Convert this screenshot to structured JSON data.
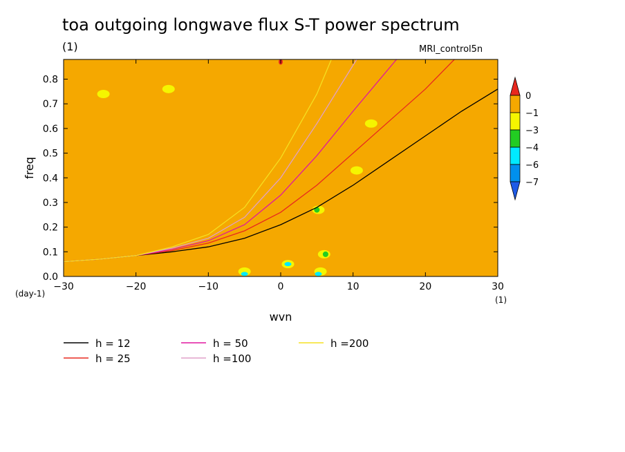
{
  "page": {
    "title": "toa outgoing longwave flux S-T power spectrum",
    "unit_label": "(1)",
    "model_label": "MRI_control5n"
  },
  "chart_data": {
    "type": "heatmap",
    "title": "toa outgoing longwave flux S-T power spectrum",
    "xlabel": "wvn",
    "ylabel": "freq",
    "x_unit": "(1)",
    "y_unit": "(day-1)",
    "xlim": [
      -30,
      30
    ],
    "ylim": [
      0.0,
      0.88
    ],
    "xticks": [
      -30,
      -20,
      -10,
      0,
      10,
      20,
      30
    ],
    "yticks": [
      0.0,
      0.1,
      0.2,
      0.3,
      0.4,
      0.5,
      0.6,
      0.7,
      0.8
    ],
    "colorbar": {
      "levels": [
        "0",
        "-1",
        "-3",
        "-4",
        "-6",
        "-7"
      ],
      "colors": [
        "#e8281e",
        "#f5a800",
        "#f5f500",
        "#22cc22",
        "#00eaff",
        "#0090ee",
        "#1f5be6"
      ]
    },
    "background_level": "-1",
    "field_colors": {
      "background": "#f5a800",
      "low": "#f5f500",
      "lower": "#22cc22",
      "lowest": "#00eaff",
      "min": "#0090ee",
      "high": "#e8281e"
    },
    "patches": [
      {
        "level": "-3",
        "x": 5.2,
        "y": 0.27
      },
      {
        "level": "-3",
        "x": 10.5,
        "y": 0.43
      },
      {
        "level": "-3",
        "x": 6.0,
        "y": 0.09
      },
      {
        "level": "-3",
        "x": 5.5,
        "y": 0.02
      },
      {
        "level": "-3",
        "x": -5.0,
        "y": 0.02
      },
      {
        "level": "-3",
        "x": 1.0,
        "y": 0.05
      },
      {
        "level": "-3",
        "x": -24.5,
        "y": 0.74
      },
      {
        "level": "-3",
        "x": -15.5,
        "y": 0.76
      },
      {
        "level": "-3",
        "x": 12.5,
        "y": 0.62
      },
      {
        "level": "-4",
        "x": 5.0,
        "y": 0.27
      },
      {
        "level": "-4",
        "x": 6.2,
        "y": 0.09
      },
      {
        "level": "-6",
        "x": 1.0,
        "y": 0.05
      },
      {
        "level": "-6",
        "x": -5.0,
        "y": 0.01
      },
      {
        "level": "-6",
        "x": 5.2,
        "y": 0.01
      },
      {
        "level": "0",
        "x": 0.0,
        "y": 0.87
      }
    ],
    "series": [
      {
        "name": "h = 12",
        "color": "#000000",
        "x": [
          -30,
          -25,
          -20,
          -15,
          -10,
          -5,
          0,
          5,
          10,
          15,
          20,
          25,
          30
        ],
        "y": [
          0.06,
          0.07,
          0.085,
          0.1,
          0.12,
          0.155,
          0.21,
          0.28,
          0.37,
          0.47,
          0.57,
          0.67,
          0.76
        ]
      },
      {
        "name": "h = 25",
        "color": "#e8281e",
        "x": [
          -30,
          -25,
          -20,
          -15,
          -10,
          -5,
          0,
          5,
          10,
          15,
          20,
          24
        ],
        "y": [
          0.06,
          0.07,
          0.085,
          0.105,
          0.135,
          0.185,
          0.26,
          0.37,
          0.5,
          0.63,
          0.76,
          0.88
        ]
      },
      {
        "name": "h = 50",
        "color": "#e0169f",
        "x": [
          -30,
          -25,
          -20,
          -15,
          -10,
          -5,
          0,
          5,
          10,
          16
        ],
        "y": [
          0.06,
          0.07,
          0.085,
          0.11,
          0.145,
          0.21,
          0.33,
          0.49,
          0.67,
          0.88
        ]
      },
      {
        "name": "h =100",
        "color": "#e0a0c8",
        "x": [
          -30,
          -25,
          -20,
          -15,
          -10,
          -5,
          0,
          5,
          10.5
        ],
        "y": [
          0.06,
          0.07,
          0.085,
          0.115,
          0.155,
          0.24,
          0.4,
          0.62,
          0.88
        ]
      },
      {
        "name": "h =200",
        "color": "#f5e020",
        "x": [
          -30,
          -25,
          -20,
          -15,
          -10,
          -5,
          0,
          5,
          7
        ],
        "y": [
          0.06,
          0.07,
          0.085,
          0.12,
          0.17,
          0.28,
          0.48,
          0.74,
          0.88
        ]
      }
    ],
    "legend_placement": "bottom"
  }
}
